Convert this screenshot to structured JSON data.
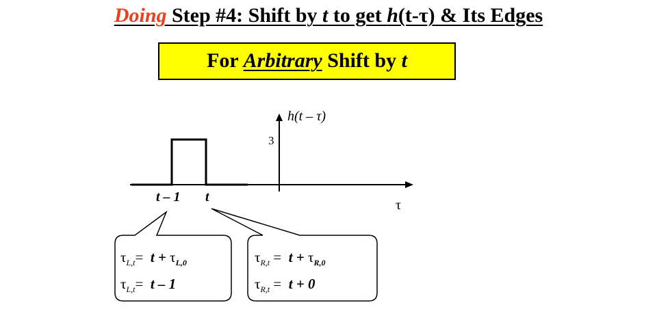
{
  "title": {
    "doing": "Doing",
    "pre": " Step #4: Shift by ",
    "var_t": "t",
    "mid": " to get ",
    "func": "h",
    "arg": "(t-τ)",
    "post": " & Its Edges"
  },
  "banner": {
    "pre": "For ",
    "arbitrary": "Arbitrary",
    "mid": " Shift by ",
    "var_t": "t"
  },
  "plot": {
    "y_label": "h(t – τ)",
    "y_tick": "3",
    "x_label": "τ",
    "left_edge_label": "t – 1",
    "right_edge_label": "t",
    "pulse_height": 3,
    "line_color": "#000000"
  },
  "left_callout": {
    "line1": {
      "lhs_sym": "τ",
      "lhs_sub": "L,t",
      "eq": "=",
      "rhs_t": "t + ",
      "rhs_tau": "τ",
      "rhs_sub": "L,0"
    },
    "line2": {
      "lhs_sym": "τ",
      "lhs_sub": "L,t",
      "eq": "=",
      "rhs": "t – 1"
    }
  },
  "right_callout": {
    "line1": {
      "lhs_sym": "τ",
      "lhs_sub": "R,t",
      "eq": "=",
      "rhs_t": "t + ",
      "rhs_tau": "τ",
      "rhs_sub": "R,0"
    },
    "line2": {
      "lhs_sym": "τ",
      "lhs_sub": "R,t",
      "eq": "=",
      "rhs": "t + 0"
    }
  }
}
